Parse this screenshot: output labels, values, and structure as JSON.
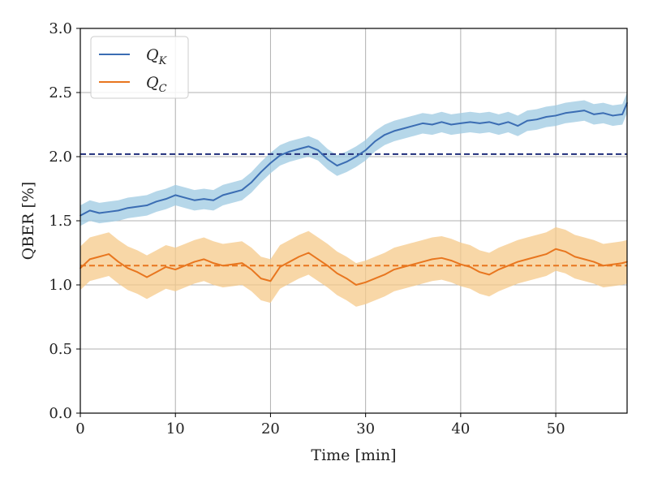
{
  "chart_data": {
    "type": "line",
    "title": "",
    "xlabel": "Time [min]",
    "ylabel": "QBER [%]",
    "xlim": [
      0,
      57.5
    ],
    "ylim": [
      0,
      3.0
    ],
    "xticks": [
      0,
      10,
      20,
      30,
      40,
      50
    ],
    "xtick_labels": [
      "0",
      "10",
      "20",
      "30",
      "40",
      "50"
    ],
    "yticks": [
      0.0,
      0.5,
      1.0,
      1.5,
      2.0,
      2.5,
      3.0
    ],
    "ytick_labels": [
      "0.0",
      "0.5",
      "1.0",
      "1.5",
      "2.0",
      "2.5",
      "3.0"
    ],
    "grid": true,
    "legend_position": "top-left",
    "series": [
      {
        "name": "Q_K",
        "legend_base": "Q",
        "legend_sub": "K",
        "color": "#3b6db3",
        "band_color": "#9ecae1",
        "band_halfwidth": 0.08,
        "mean_value": 2.02,
        "mean_color": "#1f2d7a",
        "x": [
          0,
          1,
          2,
          3,
          4,
          5,
          6,
          7,
          8,
          9,
          10,
          11,
          12,
          13,
          14,
          15,
          16,
          17,
          18,
          19,
          20,
          21,
          22,
          23,
          24,
          25,
          26,
          27,
          28,
          29,
          30,
          31,
          32,
          33,
          34,
          35,
          36,
          37,
          38,
          39,
          40,
          41,
          42,
          43,
          44,
          45,
          46,
          47,
          48,
          49,
          50,
          51,
          52,
          53,
          54,
          55,
          56,
          57,
          57.5
        ],
        "values": [
          1.54,
          1.58,
          1.56,
          1.57,
          1.58,
          1.6,
          1.61,
          1.62,
          1.65,
          1.67,
          1.7,
          1.68,
          1.66,
          1.67,
          1.66,
          1.7,
          1.72,
          1.74,
          1.8,
          1.88,
          1.95,
          2.01,
          2.04,
          2.06,
          2.08,
          2.05,
          1.98,
          1.93,
          1.96,
          2.0,
          2.05,
          2.12,
          2.17,
          2.2,
          2.22,
          2.24,
          2.26,
          2.25,
          2.27,
          2.25,
          2.26,
          2.27,
          2.26,
          2.27,
          2.25,
          2.27,
          2.24,
          2.28,
          2.29,
          2.31,
          2.32,
          2.34,
          2.35,
          2.36,
          2.33,
          2.34,
          2.32,
          2.33,
          2.42
        ]
      },
      {
        "name": "Q_C",
        "legend_base": "Q",
        "legend_sub": "C",
        "color": "#e8761f",
        "band_color": "#f5c98a",
        "band_halfwidth": 0.17,
        "mean_value": 1.15,
        "mean_color": "#e8761f",
        "x": [
          0,
          1,
          2,
          3,
          4,
          5,
          6,
          7,
          8,
          9,
          10,
          11,
          12,
          13,
          14,
          15,
          16,
          17,
          18,
          19,
          20,
          21,
          22,
          23,
          24,
          25,
          26,
          27,
          28,
          29,
          30,
          31,
          32,
          33,
          34,
          35,
          36,
          37,
          38,
          39,
          40,
          41,
          42,
          43,
          44,
          45,
          46,
          47,
          48,
          49,
          50,
          51,
          52,
          53,
          54,
          55,
          56,
          57,
          57.5
        ],
        "values": [
          1.13,
          1.2,
          1.22,
          1.24,
          1.18,
          1.13,
          1.1,
          1.06,
          1.1,
          1.14,
          1.12,
          1.15,
          1.18,
          1.2,
          1.17,
          1.15,
          1.16,
          1.17,
          1.12,
          1.05,
          1.03,
          1.14,
          1.18,
          1.22,
          1.25,
          1.2,
          1.15,
          1.09,
          1.05,
          1.0,
          1.02,
          1.05,
          1.08,
          1.12,
          1.14,
          1.16,
          1.18,
          1.2,
          1.21,
          1.19,
          1.16,
          1.14,
          1.1,
          1.08,
          1.12,
          1.15,
          1.18,
          1.2,
          1.22,
          1.24,
          1.28,
          1.26,
          1.22,
          1.2,
          1.18,
          1.15,
          1.16,
          1.17,
          1.18
        ]
      }
    ]
  }
}
